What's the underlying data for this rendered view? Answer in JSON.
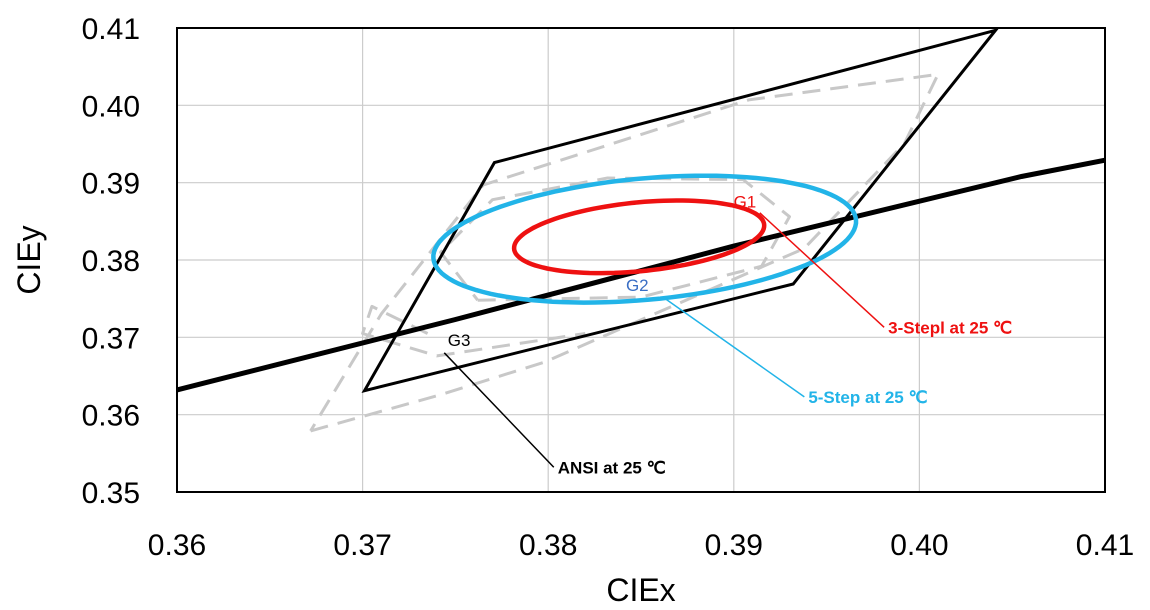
{
  "chart_data": {
    "type": "line",
    "xlabel": "CIEx",
    "ylabel": "CIEy",
    "xlim": [
      0.36,
      0.41
    ],
    "ylim": [
      0.35,
      0.41
    ],
    "x_ticks": [
      "0.36",
      "0.37",
      "0.38",
      "0.39",
      "0.40",
      "0.41"
    ],
    "y_ticks": [
      "0.35",
      "0.36",
      "0.37",
      "0.38",
      "0.39",
      "0.40",
      "0.41"
    ],
    "grid": true,
    "colors": {
      "red": "#ee1111",
      "blue": "#22b4e8",
      "black": "#000000",
      "dashed": "#c8c8c8",
      "grid": "#cccccc"
    },
    "series": [
      {
        "kind": "line",
        "color": "#000000",
        "points": [
          [
            0.36,
            0.3632
          ],
          [
            0.375,
            0.3723
          ],
          [
            0.39,
            0.3818
          ],
          [
            0.4055,
            0.3908
          ],
          [
            0.41,
            0.3929
          ]
        ]
      },
      {
        "kind": "polygon",
        "color": "#000000",
        "points": [
          [
            0.3701,
            0.3631
          ],
          [
            0.3771,
            0.3926
          ],
          [
            0.4041,
            0.4097
          ],
          [
            0.3932,
            0.3769
          ]
        ]
      },
      {
        "kind": "ellipse",
        "color": "#22b4e8",
        "center": [
          0.3852,
          0.3827
        ],
        "semi_axes": [
          0.0118,
          0.0076
        ],
        "rotation_deg": 20
      },
      {
        "kind": "ellipse",
        "color": "#ee1111",
        "center": [
          0.3849,
          0.383
        ],
        "semi_axes": [
          0.007,
          0.0043
        ],
        "rotation_deg": 20
      },
      {
        "kind": "dashed-outline",
        "color": "#c8c8c8",
        "points": [
          [
            0.3672,
            0.3579
          ],
          [
            0.3741,
            0.3625
          ],
          [
            0.3798,
            0.3668
          ],
          [
            0.3938,
            0.3815
          ],
          [
            0.3992,
            0.3951
          ],
          [
            0.401,
            0.404
          ],
          [
            0.3908,
            0.4007
          ],
          [
            0.3851,
            0.3963
          ],
          [
            0.3765,
            0.3897
          ],
          [
            0.371,
            0.373
          ],
          [
            0.3672,
            0.3579
          ]
        ]
      },
      {
        "kind": "dashed-outline",
        "color": "#c8c8c8",
        "points": [
          [
            0.3762,
            0.3748
          ],
          [
            0.385,
            0.3752
          ],
          [
            0.3915,
            0.3792
          ],
          [
            0.393,
            0.3856
          ],
          [
            0.3905,
            0.3904
          ],
          [
            0.3832,
            0.3906
          ],
          [
            0.377,
            0.3878
          ],
          [
            0.3742,
            0.381
          ],
          [
            0.3762,
            0.3748
          ]
        ]
      },
      {
        "kind": "dashed-outline",
        "color": "#c8c8c8",
        "points": [
          [
            0.3735,
            0.3705
          ],
          [
            0.3705,
            0.374
          ],
          [
            0.37,
            0.3705
          ],
          [
            0.374,
            0.3676
          ],
          [
            0.382,
            0.3705
          ]
        ]
      }
    ],
    "annotations": [
      {
        "text": "G1",
        "color": "#ee1111",
        "at": [
          0.3906,
          0.3868
        ]
      },
      {
        "text": "G2",
        "color": "#3a6ec4",
        "at": [
          0.3848,
          0.376
        ]
      },
      {
        "text": "G3",
        "color": "#000000",
        "at": [
          0.3752,
          0.3689
        ]
      }
    ],
    "callouts": [
      {
        "text": "3-Stepl at 25 ℃",
        "color": "#ee1111",
        "from": [
          0.3914,
          0.3861
        ],
        "to": [
          0.3981,
          0.3713
        ]
      },
      {
        "text": "5-Step at 25 ℃",
        "color": "#22b4e8",
        "from": [
          0.3863,
          0.375
        ],
        "to": [
          0.3938,
          0.3623
        ]
      },
      {
        "text": "ANSI at 25 ℃",
        "color": "#000000",
        "from": [
          0.3744,
          0.368
        ],
        "to": [
          0.3803,
          0.3532
        ]
      }
    ]
  }
}
